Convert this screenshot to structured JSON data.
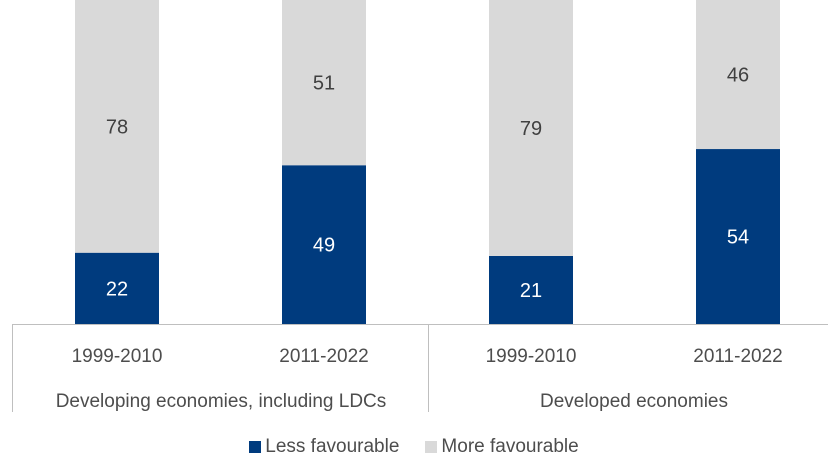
{
  "chart_data": {
    "type": "bar",
    "stacked": true,
    "percent_stacked": true,
    "groups": [
      {
        "label": "Developing economies, including LDCs",
        "categories": [
          "1999-2010",
          "2011-2022"
        ]
      },
      {
        "label": "Developed economies",
        "categories": [
          "1999-2010",
          "2011-2022"
        ]
      }
    ],
    "categories": [
      "1999-2010",
      "2011-2022",
      "1999-2010",
      "2011-2022"
    ],
    "series": [
      {
        "name": "Less favourable",
        "color": "#003b7e",
        "values": [
          22,
          49,
          21,
          54
        ]
      },
      {
        "name": "More favourable",
        "color": "#d9d9d9",
        "values": [
          78,
          51,
          79,
          46
        ]
      }
    ],
    "ylim": [
      0,
      100
    ],
    "title": "",
    "xlabel": "",
    "ylabel": "",
    "grid": false,
    "legend_position": "bottom"
  }
}
